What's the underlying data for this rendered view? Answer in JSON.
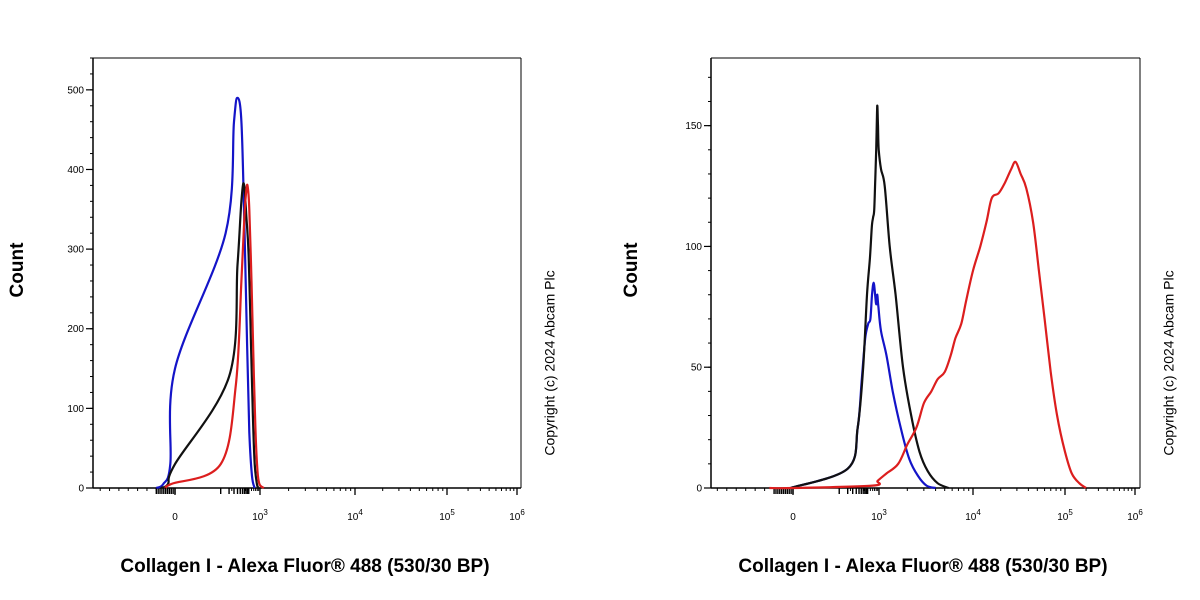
{
  "chart_data": [
    {
      "type": "line",
      "panel": "left",
      "title": "",
      "xlabel": "Collagen I - Alexa Fluor® 488 (530/30 BP)",
      "ylabel": "Count",
      "x_scale": "biexponential",
      "xlim": [
        -3000,
        1000000
      ],
      "ylim": [
        0,
        540
      ],
      "x_ticks": [
        {
          "value": 0,
          "base": "0",
          "exp": ""
        },
        {
          "value": 1000,
          "base": "10",
          "exp": "3"
        },
        {
          "value": 10000,
          "base": "10",
          "exp": "4"
        },
        {
          "value": 100000,
          "base": "10",
          "exp": "5"
        },
        {
          "value": 1000000,
          "base": "10",
          "exp": "6"
        }
      ],
      "y_ticks": [
        {
          "value": 0,
          "label": "0"
        },
        {
          "value": 100,
          "label": "100"
        },
        {
          "value": 200,
          "label": "200"
        },
        {
          "value": 300,
          "label": "300"
        },
        {
          "value": 400,
          "label": "400"
        },
        {
          "value": 500,
          "label": "500"
        }
      ],
      "series": [
        {
          "color": "#1414c8",
          "points": [
            [
              -400,
              0
            ],
            [
              -250,
              5
            ],
            [
              -100,
              30
            ],
            [
              0,
              150
            ],
            [
              60,
              320
            ],
            [
              120,
              460
            ],
            [
              160,
              490
            ],
            [
              220,
              460
            ],
            [
              280,
              330
            ],
            [
              350,
              180
            ],
            [
              420,
              70
            ],
            [
              520,
              15
            ],
            [
              650,
              0
            ]
          ]
        },
        {
          "color": "#111111",
          "points": [
            [
              -300,
              0
            ],
            [
              -150,
              5
            ],
            [
              0,
              30
            ],
            [
              80,
              140
            ],
            [
              160,
              280
            ],
            [
              220,
              360
            ],
            [
              270,
              382
            ],
            [
              330,
              340
            ],
            [
              400,
              290
            ],
            [
              480,
              180
            ],
            [
              560,
              90
            ],
            [
              650,
              30
            ],
            [
              780,
              5
            ],
            [
              900,
              0
            ]
          ]
        },
        {
          "color": "#dc1e1e",
          "points": [
            [
              -200,
              0
            ],
            [
              -80,
              5
            ],
            [
              40,
              30
            ],
            [
              140,
              130
            ],
            [
              220,
              260
            ],
            [
              280,
              340
            ],
            [
              320,
              370
            ],
            [
              360,
              380
            ],
            [
              420,
              350
            ],
            [
              500,
              260
            ],
            [
              580,
              170
            ],
            [
              680,
              80
            ],
            [
              800,
              25
            ],
            [
              950,
              5
            ],
            [
              1100,
              0
            ]
          ]
        }
      ],
      "copyright": "Copyright (c) 2024 Abcam Plc"
    },
    {
      "type": "line",
      "panel": "right",
      "title": "",
      "xlabel": "Collagen I - Alexa Fluor® 488 (530/30 BP)",
      "ylabel": "Count",
      "x_scale": "biexponential",
      "xlim": [
        -3000,
        1000000
      ],
      "ylim": [
        0,
        178
      ],
      "x_ticks": [
        {
          "value": 0,
          "base": "0",
          "exp": ""
        },
        {
          "value": 1000,
          "base": "10",
          "exp": "3"
        },
        {
          "value": 10000,
          "base": "10",
          "exp": "4"
        },
        {
          "value": 100000,
          "base": "10",
          "exp": "5"
        },
        {
          "value": 1000000,
          "base": "10",
          "exp": "6"
        }
      ],
      "y_ticks": [
        {
          "value": 0,
          "label": "0"
        },
        {
          "value": 50,
          "label": "50"
        },
        {
          "value": 100,
          "label": "100"
        },
        {
          "value": 150,
          "label": "150"
        }
      ],
      "series": [
        {
          "color": "#1414c8",
          "points": [
            [
              -50,
              0
            ],
            [
              80,
              8
            ],
            [
              180,
              25
            ],
            [
              250,
              45
            ],
            [
              330,
              62
            ],
            [
              420,
              68
            ],
            [
              500,
              70
            ],
            [
              570,
              80
            ],
            [
              650,
              85
            ],
            [
              730,
              80
            ],
            [
              800,
              76
            ],
            [
              870,
              80
            ],
            [
              950,
              75
            ],
            [
              1050,
              65
            ],
            [
              1200,
              55
            ],
            [
              1400,
              40
            ],
            [
              1700,
              25
            ],
            [
              2100,
              12
            ],
            [
              2600,
              5
            ],
            [
              3200,
              1
            ],
            [
              4000,
              0
            ]
          ]
        },
        {
          "color": "#111111",
          "points": [
            [
              -50,
              0
            ],
            [
              80,
              8
            ],
            [
              180,
              25
            ],
            [
              280,
              50
            ],
            [
              380,
              80
            ],
            [
              480,
              95
            ],
            [
              560,
              108
            ],
            [
              620,
              112
            ],
            [
              680,
              115
            ],
            [
              740,
              128
            ],
            [
              800,
              140
            ],
            [
              850,
              155
            ],
            [
              880,
              158
            ],
            [
              920,
              150
            ],
            [
              980,
              140
            ],
            [
              1050,
              132
            ],
            [
              1150,
              125
            ],
            [
              1300,
              100
            ],
            [
              1500,
              80
            ],
            [
              1800,
              50
            ],
            [
              2200,
              30
            ],
            [
              2700,
              15
            ],
            [
              3300,
              7
            ],
            [
              4200,
              2
            ],
            [
              5500,
              0
            ]
          ]
        },
        {
          "color": "#dc1e1e",
          "points": [
            [
              -500,
              0
            ],
            [
              0,
              0
            ],
            [
              600,
              1
            ],
            [
              900,
              3
            ],
            [
              1200,
              6
            ],
            [
              1600,
              10
            ],
            [
              2000,
              18
            ],
            [
              2500,
              25
            ],
            [
              3000,
              35
            ],
            [
              3600,
              40
            ],
            [
              4200,
              45
            ],
            [
              5000,
              48
            ],
            [
              5800,
              55
            ],
            [
              6500,
              62
            ],
            [
              7500,
              68
            ],
            [
              8500,
              78
            ],
            [
              10000,
              90
            ],
            [
              12000,
              100
            ],
            [
              14000,
              110
            ],
            [
              16000,
              120
            ],
            [
              19000,
              122
            ],
            [
              22000,
              126
            ],
            [
              26000,
              132
            ],
            [
              29000,
              135
            ],
            [
              33000,
              130
            ],
            [
              38000,
              124
            ],
            [
              45000,
              110
            ],
            [
              52000,
              90
            ],
            [
              60000,
              70
            ],
            [
              70000,
              48
            ],
            [
              82000,
              30
            ],
            [
              100000,
              15
            ],
            [
              125000,
              6
            ],
            [
              160000,
              2
            ],
            [
              200000,
              0
            ]
          ]
        }
      ],
      "copyright": "Copyright (c) 2024 Abcam Plc"
    }
  ]
}
